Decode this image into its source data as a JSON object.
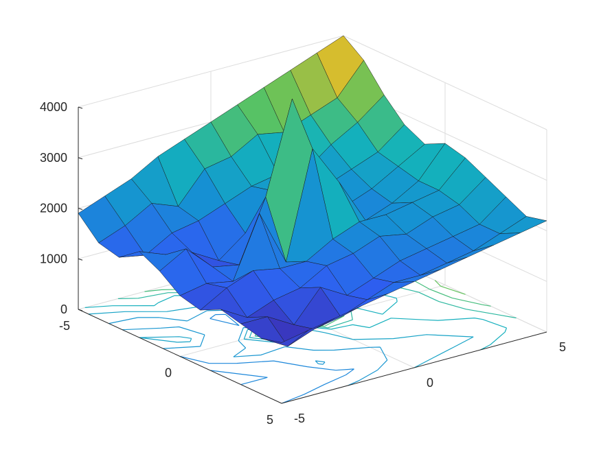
{
  "chart_data": {
    "type": "surface3d",
    "title": "",
    "xlabel": "",
    "ylabel": "",
    "zlabel": "",
    "xlim": [
      -5,
      5
    ],
    "ylim": [
      -5,
      5
    ],
    "zlim": [
      0,
      4000
    ],
    "x_ticks": [
      "-5",
      "0",
      "5"
    ],
    "y_ticks": [
      "-5",
      "0",
      "5"
    ],
    "z_ticks": [
      "0",
      "1000",
      "2000",
      "3000",
      "4000"
    ],
    "grid": true,
    "colormap": "parula",
    "colormap_colors": [
      "#3e26a8",
      "#2e60f1",
      "#168fd4",
      "#14b2bb",
      "#5cc35e",
      "#d5bb2f",
      "#f9fb0e"
    ],
    "contour_below": true,
    "x": [
      -5,
      -4,
      -3,
      -2,
      -1,
      0,
      1,
      2,
      3,
      4,
      5
    ],
    "y": [
      -5,
      -4,
      -3,
      -2,
      -1,
      0,
      1,
      2,
      3,
      4,
      5
    ],
    "z": [
      [
        1900,
        1500,
        1400,
        1700,
        1500,
        1200,
        1100,
        1300,
        1200,
        1100,
        1200
      ],
      [
        2100,
        1700,
        1300,
        1500,
        1800,
        1300,
        1400,
        1000,
        1200,
        800,
        1300
      ],
      [
        2300,
        2000,
        1600,
        1400,
        1300,
        1200,
        1600,
        1200,
        900,
        1000,
        1400
      ],
      [
        2600,
        1800,
        1700,
        1100,
        1200,
        2400,
        1500,
        1300,
        1500,
        1100,
        1500
      ],
      [
        2800,
        2400,
        1900,
        1500,
        2400,
        1300,
        1500,
        1600,
        1200,
        1300,
        1600
      ],
      [
        3000,
        2500,
        2100,
        2200,
        4200,
        3400,
        1800,
        1700,
        1400,
        1500,
        1700
      ],
      [
        3200,
        2800,
        2200,
        2100,
        2000,
        2600,
        2000,
        1900,
        1600,
        1500,
        1800
      ],
      [
        3400,
        2700,
        2100,
        2000,
        1800,
        1700,
        2000,
        1800,
        1700,
        1600,
        1900
      ],
      [
        3600,
        2900,
        2500,
        2200,
        2000,
        1900,
        2100,
        2000,
        1800,
        1700,
        2000
      ],
      [
        3800,
        3100,
        2800,
        2400,
        2300,
        2200,
        2200,
        2100,
        1900,
        1900,
        2100
      ],
      [
        4000,
        3700,
        3200,
        2800,
        2600,
        2800,
        2700,
        2500,
        2300,
        2100,
        2200
      ]
    ]
  }
}
